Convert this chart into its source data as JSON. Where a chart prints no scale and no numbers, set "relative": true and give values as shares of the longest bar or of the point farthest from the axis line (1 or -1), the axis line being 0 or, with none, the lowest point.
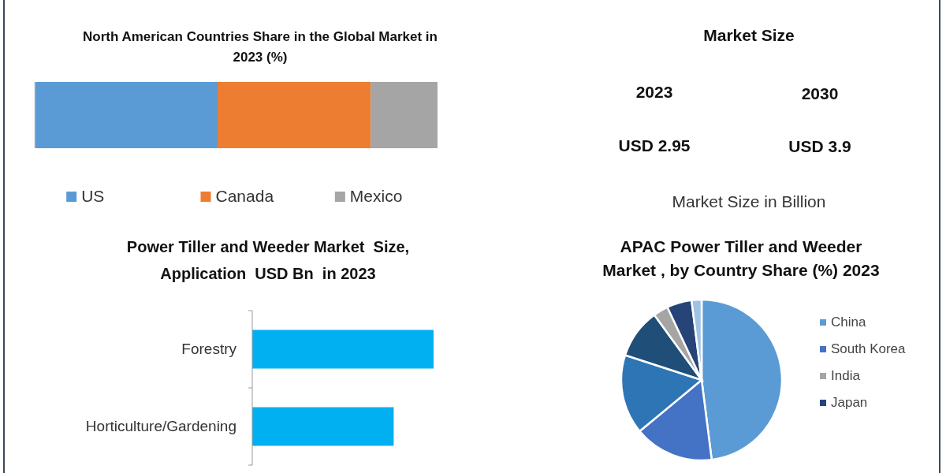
{
  "chart_data": [
    {
      "type": "bar",
      "title": "North American Countries Share in the Global Market in 2023 (%)",
      "orientation": "horizontal",
      "stacked": true,
      "relative": true,
      "categories": [
        null
      ],
      "legend": "bottom",
      "series": [
        {
          "name": "US",
          "color": "#5b9bd5",
          "values": [
            0.454
          ]
        },
        {
          "name": "Canada",
          "color": "#ed7d31",
          "values": [
            0.38
          ]
        },
        {
          "name": "Mexico",
          "color": "#a5a5a5",
          "values": [
            0.166
          ]
        }
      ]
    },
    {
      "type": "other",
      "title": "Market Size",
      "annotations": [
        "2023",
        "2030",
        "USD 2.95",
        "USD 3.9",
        "Market Size in Billion"
      ]
    },
    {
      "type": "bar",
      "title": "Power Tiller and Weeder Market  Size, Application  USD Bn  in 2023",
      "orientation": "horizontal",
      "relative": true,
      "categories": [
        "Forestry",
        "Horticulture/Gardening"
      ],
      "values": [
        1,
        0.78
      ],
      "color": "#00b0f0"
    },
    {
      "type": "pie",
      "title": "APAC Power Tiller and Weeder Market , by Country Share (%) 2023",
      "legend": "right",
      "categories": [
        "China",
        "South Korea",
        null,
        null,
        "India",
        "Japan",
        null
      ],
      "values": [
        48,
        16,
        16,
        10,
        3,
        5,
        2
      ],
      "colors": [
        "#5b9bd5",
        "#4472c4",
        "#2e75b6",
        "#1f4e79",
        "#a5a5a5",
        "#264478",
        "#9dc3e6"
      ]
    }
  ]
}
